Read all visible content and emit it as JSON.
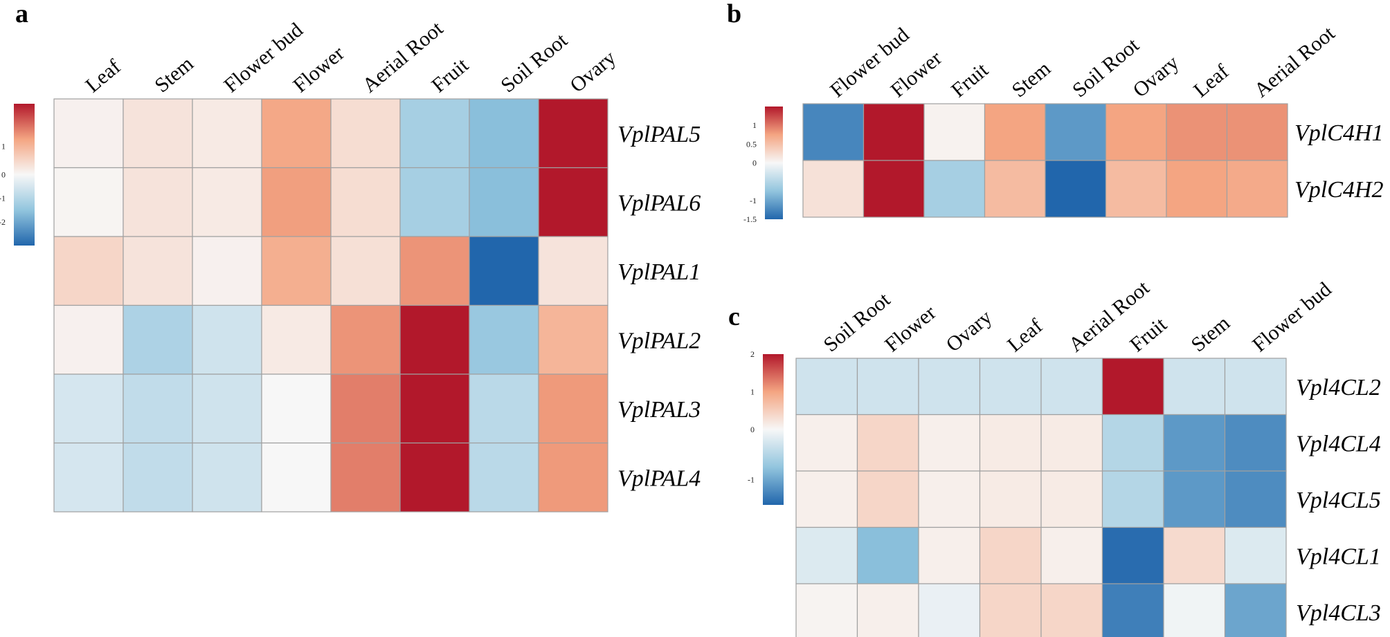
{
  "colors": {
    "low": "#2166ac",
    "mid": "#f7f7f7",
    "high": "#b2182b"
  },
  "chart_data": [
    {
      "type": "heatmap",
      "panel": "a",
      "columns": [
        "Leaf",
        "Stem",
        "Flower bud",
        "Flower",
        "Aerial Root",
        "Fruit",
        "Soil Root",
        "Ovary"
      ],
      "rows": [
        "VplPAL5",
        "VplPAL6",
        "VplPAL1",
        "VplPAL2",
        "VplPAL3",
        "VplPAL4"
      ],
      "values": [
        [
          0.1,
          0.3,
          0.2,
          1.2,
          0.4,
          -1.2,
          -1.6,
          2.5
        ],
        [
          0.05,
          0.3,
          0.2,
          1.3,
          0.4,
          -1.2,
          -1.6,
          2.5
        ],
        [
          0.5,
          0.3,
          0.1,
          1.1,
          0.35,
          1.4,
          -3.0,
          0.3
        ],
        [
          0.1,
          -1.1,
          -0.6,
          0.2,
          1.4,
          2.5,
          -1.4,
          1.0
        ],
        [
          -0.5,
          -0.8,
          -0.6,
          0.0,
          1.6,
          2.5,
          -0.9,
          1.35
        ],
        [
          -0.5,
          -0.8,
          -0.6,
          0.0,
          1.6,
          2.5,
          -0.9,
          1.35
        ]
      ],
      "scale": {
        "min": -3.0,
        "max": 2.5
      },
      "legend_ticks": [
        {
          "label": "1",
          "value": 1
        },
        {
          "label": "0",
          "value": 0
        },
        {
          "label": "-1",
          "value": -1
        },
        {
          "label": "-2",
          "value": -2
        }
      ]
    },
    {
      "type": "heatmap",
      "panel": "b",
      "columns": [
        "Flower bud",
        "Flower",
        "Fruit",
        "Stem",
        "Soil Root",
        "Ovary",
        "Leaf",
        "Aerial Root"
      ],
      "rows": [
        "VplC4H1",
        "VplC4H2"
      ],
      "values": [
        [
          -1.25,
          1.5,
          0.05,
          0.75,
          -1.1,
          0.75,
          0.85,
          0.85
        ],
        [
          0.2,
          1.5,
          -0.6,
          0.55,
          -1.5,
          0.55,
          0.75,
          0.7
        ]
      ],
      "scale": {
        "min": -1.5,
        "max": 1.5
      },
      "legend_ticks": [
        {
          "label": "1",
          "value": 1
        },
        {
          "label": "0.5",
          "value": 0.5
        },
        {
          "label": "0",
          "value": 0
        },
        {
          "label": "-1",
          "value": -1
        },
        {
          "label": "-1.5",
          "value": -1.5
        }
      ]
    },
    {
      "type": "heatmap",
      "panel": "c",
      "columns": [
        "Soil Root",
        "Flower",
        "Ovary",
        "Leaf",
        "Aerial Root",
        "Fruit",
        "Stem",
        "Flower bud"
      ],
      "rows": [
        "Vpl4CL2",
        "Vpl4CL4",
        "Vpl4CL5",
        "Vpl4CL1",
        "Vpl4CL3"
      ],
      "values": [
        [
          -0.3,
          -0.3,
          -0.3,
          -0.3,
          -0.3,
          2.0,
          -0.3,
          -0.3
        ],
        [
          0.1,
          0.4,
          0.1,
          0.15,
          0.15,
          -0.5,
          -1.1,
          -1.2
        ],
        [
          0.1,
          0.4,
          0.1,
          0.15,
          0.15,
          -0.5,
          -1.1,
          -1.2
        ],
        [
          -0.2,
          -0.8,
          0.1,
          0.4,
          0.1,
          -1.45,
          0.35,
          -0.2
        ],
        [
          0.05,
          0.1,
          -0.1,
          0.4,
          0.4,
          -1.3,
          -0.05,
          -1.0
        ]
      ],
      "scale": {
        "min": -1.5,
        "max": 2.0
      },
      "legend_ticks": [
        {
          "label": "2",
          "value": 2
        },
        {
          "label": "1",
          "value": 1
        },
        {
          "label": "0",
          "value": 0
        },
        {
          "label": "-1",
          "value": -1
        }
      ]
    }
  ]
}
